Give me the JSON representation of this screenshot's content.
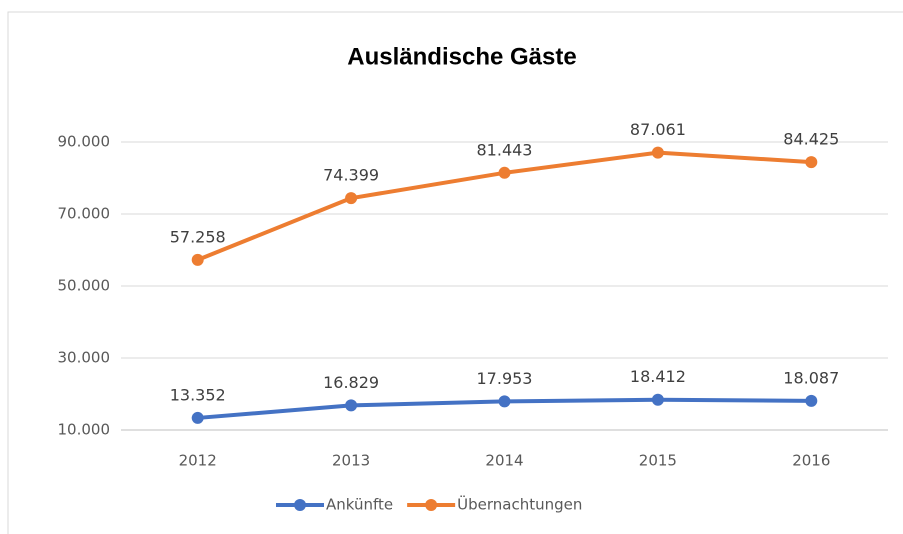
{
  "chart_data": {
    "type": "line",
    "title": "Ausländische Gäste",
    "categories": [
      "2012",
      "2013",
      "2014",
      "2015",
      "2016"
    ],
    "series": [
      {
        "name": "Ankünfte",
        "color": "#4472c4",
        "values": [
          13352,
          16829,
          17953,
          18412,
          18087
        ],
        "value_labels": [
          "13.352",
          "16.829",
          "17.953",
          "18.412",
          "18.087"
        ]
      },
      {
        "name": "Übernachtungen",
        "color": "#ed7d31",
        "values": [
          57258,
          74399,
          81443,
          87061,
          84425
        ],
        "value_labels": [
          "57.258",
          "74.399",
          "81.443",
          "87.061",
          "84.425"
        ]
      }
    ],
    "ylim": [
      10000,
      90000
    ],
    "yticks": [
      {
        "value": 10000,
        "label": "10.000"
      },
      {
        "value": 30000,
        "label": "30.000"
      },
      {
        "value": 50000,
        "label": "50.000"
      },
      {
        "value": 70000,
        "label": "70.000"
      },
      {
        "value": 90000,
        "label": "90.000"
      }
    ],
    "grid": true,
    "legend": "bottom"
  }
}
